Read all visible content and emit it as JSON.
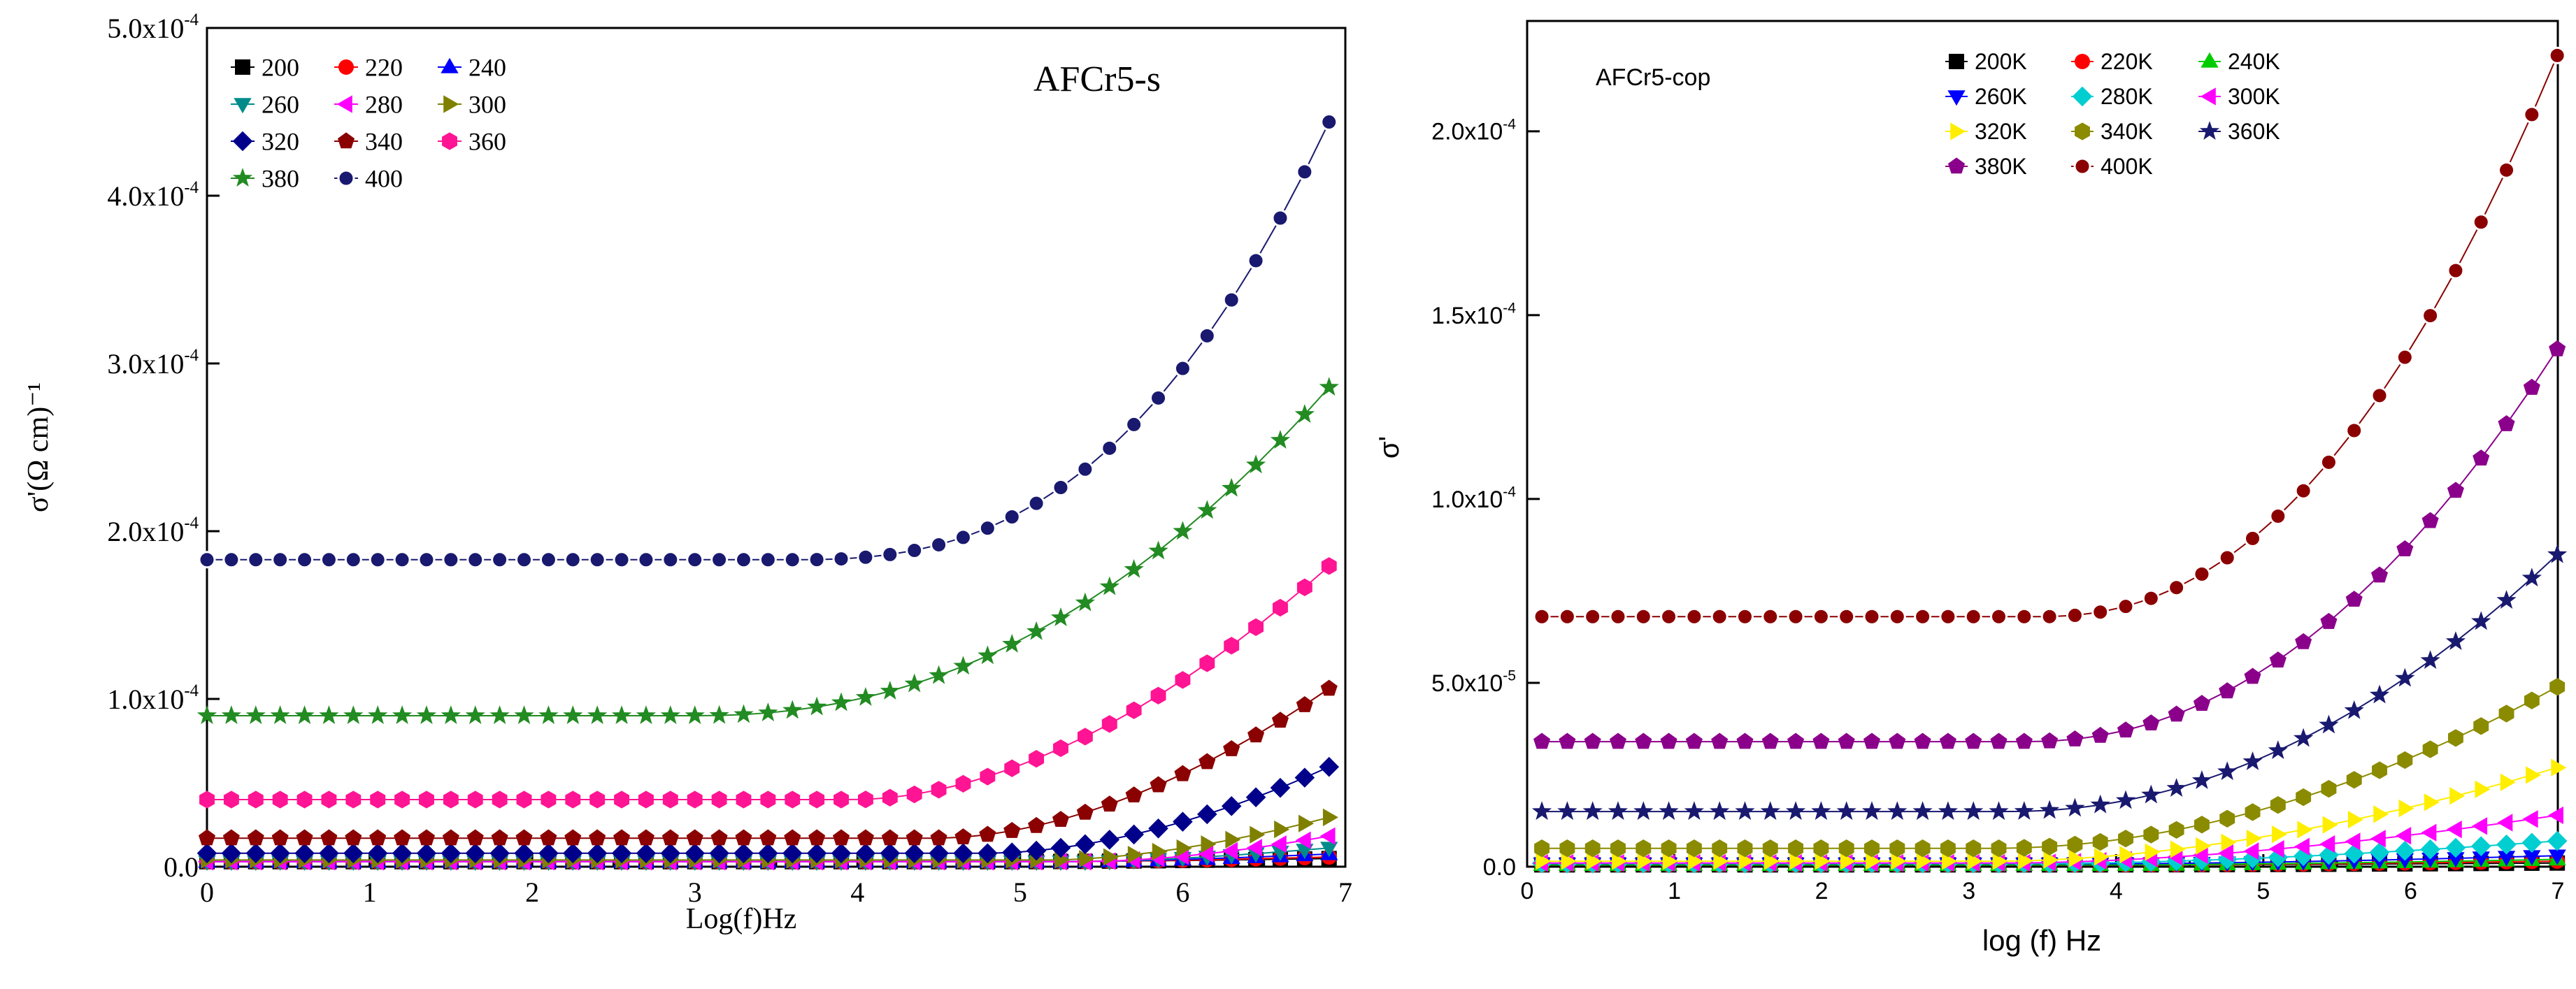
{
  "chart_data": [
    {
      "id": "left",
      "type": "line",
      "title": "AFCr5-s",
      "xlabel": "Log(f)Hz",
      "ylabel": "σ'(Ω cm)⁻¹",
      "xlim": [
        0,
        7
      ],
      "ylim": [
        0,
        0.0005
      ],
      "x_ticks": [
        0,
        1,
        2,
        3,
        4,
        5,
        6,
        7
      ],
      "y_ticks": [
        0,
        0.0001,
        0.0002,
        0.0003,
        0.0004,
        0.0005
      ],
      "y_tick_labels": [
        {
          "mantissa": "0.0",
          "exp": ""
        },
        {
          "mantissa": "1.0x10",
          "exp": "-4"
        },
        {
          "mantissa": "2.0x10",
          "exp": "-4"
        },
        {
          "mantissa": "3.0x10",
          "exp": "-4"
        },
        {
          "mantissa": "4.0x10",
          "exp": "-4"
        },
        {
          "mantissa": "5.0x10",
          "exp": "-4"
        }
      ],
      "x_start": 0.0,
      "x_step": 0.15,
      "legend_position": "top-left",
      "series": [
        {
          "name": "200",
          "color": "#000000",
          "marker": "square",
          "low": 3e-06,
          "knee": 5.0,
          "high": 5e-06,
          "steep": 1.5
        },
        {
          "name": "220",
          "color": "#ff0000",
          "marker": "circle",
          "low": 3e-06,
          "knee": 5.2,
          "high": 6e-06,
          "steep": 1.5
        },
        {
          "name": "240",
          "color": "#0000ff",
          "marker": "triangle-up",
          "low": 3e-06,
          "knee": 5.3,
          "high": 8e-06,
          "steep": 1.5
        },
        {
          "name": "260",
          "color": "#008b8b",
          "marker": "triangle-down",
          "low": 3e-06,
          "knee": 5.4,
          "high": 1.2e-05,
          "steep": 1.5
        },
        {
          "name": "280",
          "color": "#ff00ff",
          "marker": "triangle-left",
          "low": 3e-06,
          "knee": 5.4,
          "high": 2e-05,
          "steep": 1.7
        },
        {
          "name": "300",
          "color": "#808000",
          "marker": "triangle-right",
          "low": 4e-06,
          "knee": 5.2,
          "high": 3.2e-05,
          "steep": 1.7
        },
        {
          "name": "320",
          "color": "#00008b",
          "marker": "diamond",
          "low": 8e-06,
          "knee": 4.8,
          "high": 6.4e-05,
          "steep": 1.8
        },
        {
          "name": "340",
          "color": "#8b0000",
          "marker": "pentagon",
          "low": 1.7e-05,
          "knee": 4.5,
          "high": 0.000113,
          "steep": 1.8
        },
        {
          "name": "360",
          "color": "#ff1493",
          "marker": "hexagon",
          "low": 4e-05,
          "knee": 4.0,
          "high": 0.000188,
          "steep": 1.8
        },
        {
          "name": "380",
          "color": "#228b22",
          "marker": "star",
          "low": 9e-05,
          "knee": 3.0,
          "high": 0.000297,
          "steep": 2.2
        },
        {
          "name": "400",
          "color": "#191970",
          "marker": "ring",
          "low": 0.000183,
          "knee": 3.6,
          "high": 0.000465,
          "steep": 2.6
        }
      ]
    },
    {
      "id": "right",
      "type": "line",
      "title": "AFCr5-cop",
      "xlabel": "log (f) Hz",
      "ylabel": "σ'",
      "xlim": [
        0,
        7
      ],
      "ylim": [
        0,
        0.00023
      ],
      "x_ticks": [
        0,
        1,
        2,
        3,
        4,
        5,
        6,
        7
      ],
      "y_ticks": [
        0,
        5e-05,
        0.0001,
        0.00015,
        0.0002
      ],
      "y_tick_labels": [
        {
          "mantissa": "0.0",
          "exp": ""
        },
        {
          "mantissa": "5.0x10",
          "exp": "-5"
        },
        {
          "mantissa": "1.0x10",
          "exp": "-4"
        },
        {
          "mantissa": "1.5x10",
          "exp": "-4"
        },
        {
          "mantissa": "2.0x10",
          "exp": "-4"
        }
      ],
      "x_start": 0.1,
      "x_step": 0.1724,
      "legend_position": "top-right",
      "series": [
        {
          "name": "200K",
          "color": "#000000",
          "marker": "square",
          "low": 5e-07,
          "knee": 4.0,
          "high": 1e-06,
          "steep": 1.5
        },
        {
          "name": "220K",
          "color": "#ff0000",
          "marker": "circle",
          "low": 5e-07,
          "knee": 4.0,
          "high": 1.5e-06,
          "steep": 1.5
        },
        {
          "name": "240K",
          "color": "#00cc00",
          "marker": "triangle-up",
          "low": 5e-07,
          "knee": 4.0,
          "high": 2e-06,
          "steep": 1.5
        },
        {
          "name": "260K",
          "color": "#0000ff",
          "marker": "triangle-down",
          "low": 8e-07,
          "knee": 4.0,
          "high": 3e-06,
          "steep": 1.5
        },
        {
          "name": "280K",
          "color": "#00ced1",
          "marker": "diamond",
          "low": 9e-07,
          "knee": 3.6,
          "high": 7e-06,
          "steep": 1.6
        },
        {
          "name": "300K",
          "color": "#ff00ff",
          "marker": "triangle-left",
          "low": 1e-06,
          "knee": 3.3,
          "high": 1.4e-05,
          "steep": 1.7
        },
        {
          "name": "320K",
          "color": "#ffee00",
          "marker": "triangle-right",
          "low": 1.5e-06,
          "knee": 3.2,
          "high": 2.7e-05,
          "steep": 1.8
        },
        {
          "name": "340K",
          "color": "#8b8b00",
          "marker": "hexagon",
          "low": 5e-06,
          "knee": 3.2,
          "high": 4.9e-05,
          "steep": 1.9
        },
        {
          "name": "360K",
          "color": "#191970",
          "marker": "star",
          "low": 1.5e-05,
          "knee": 3.3,
          "high": 8.5e-05,
          "steep": 2.0
        },
        {
          "name": "380K",
          "color": "#8b008b",
          "marker": "pentagon",
          "low": 3.4e-05,
          "knee": 3.4,
          "high": 0.000141,
          "steep": 2.1
        },
        {
          "name": "400K",
          "color": "#8b0000",
          "marker": "ring",
          "low": 6.8e-05,
          "knee": 3.5,
          "high": 0.000221,
          "steep": 2.2
        }
      ]
    }
  ]
}
